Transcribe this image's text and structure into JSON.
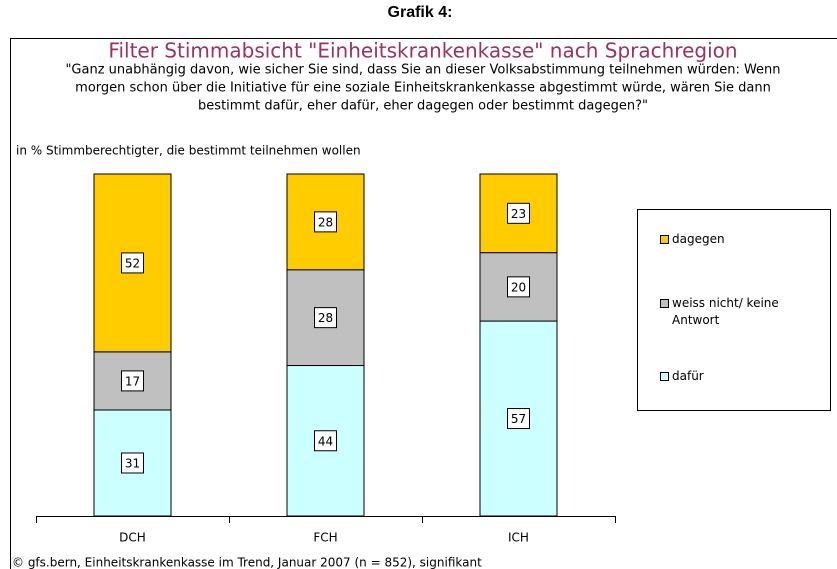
{
  "chart_data": {
    "type": "stacked_bar",
    "heading": "Grafik 4:",
    "title": "Filter Stimmabsicht \"Einheitskrankenkasse\" nach Sprachregion",
    "question": [
      "\"Ganz unabhängig davon, wie sicher Sie sind, dass Sie an dieser Volksabstimmung teilnehmen würden: Wenn",
      "morgen schon über die Initiative für eine soziale Einheitskrankenkasse abgestimmt würde, wären Sie dann",
      "bestimmt dafür, eher dafür, eher dagegen oder bestimmt dagegen?\""
    ],
    "y_label": "in % Stimmberechtigter, die bestimmt teilnehmen wollen",
    "footer": "© gfs.bern, Einheitskrankenkasse im Trend, Januar 2007 (n = 852), signifikant",
    "categories": [
      "DCH",
      "FCH",
      "ICH"
    ],
    "series": [
      {
        "name": "dafür",
        "color": "#ccffff",
        "values": [
          31,
          44,
          57
        ]
      },
      {
        "name": "weiss nicht/ keine Antwort",
        "color": "#c0c0c0",
        "values": [
          17,
          28,
          20
        ]
      },
      {
        "name": "dagegen",
        "color": "#ffcc00",
        "values": [
          52,
          28,
          23
        ]
      }
    ],
    "ylim": [
      0,
      100
    ],
    "legend": "right"
  }
}
